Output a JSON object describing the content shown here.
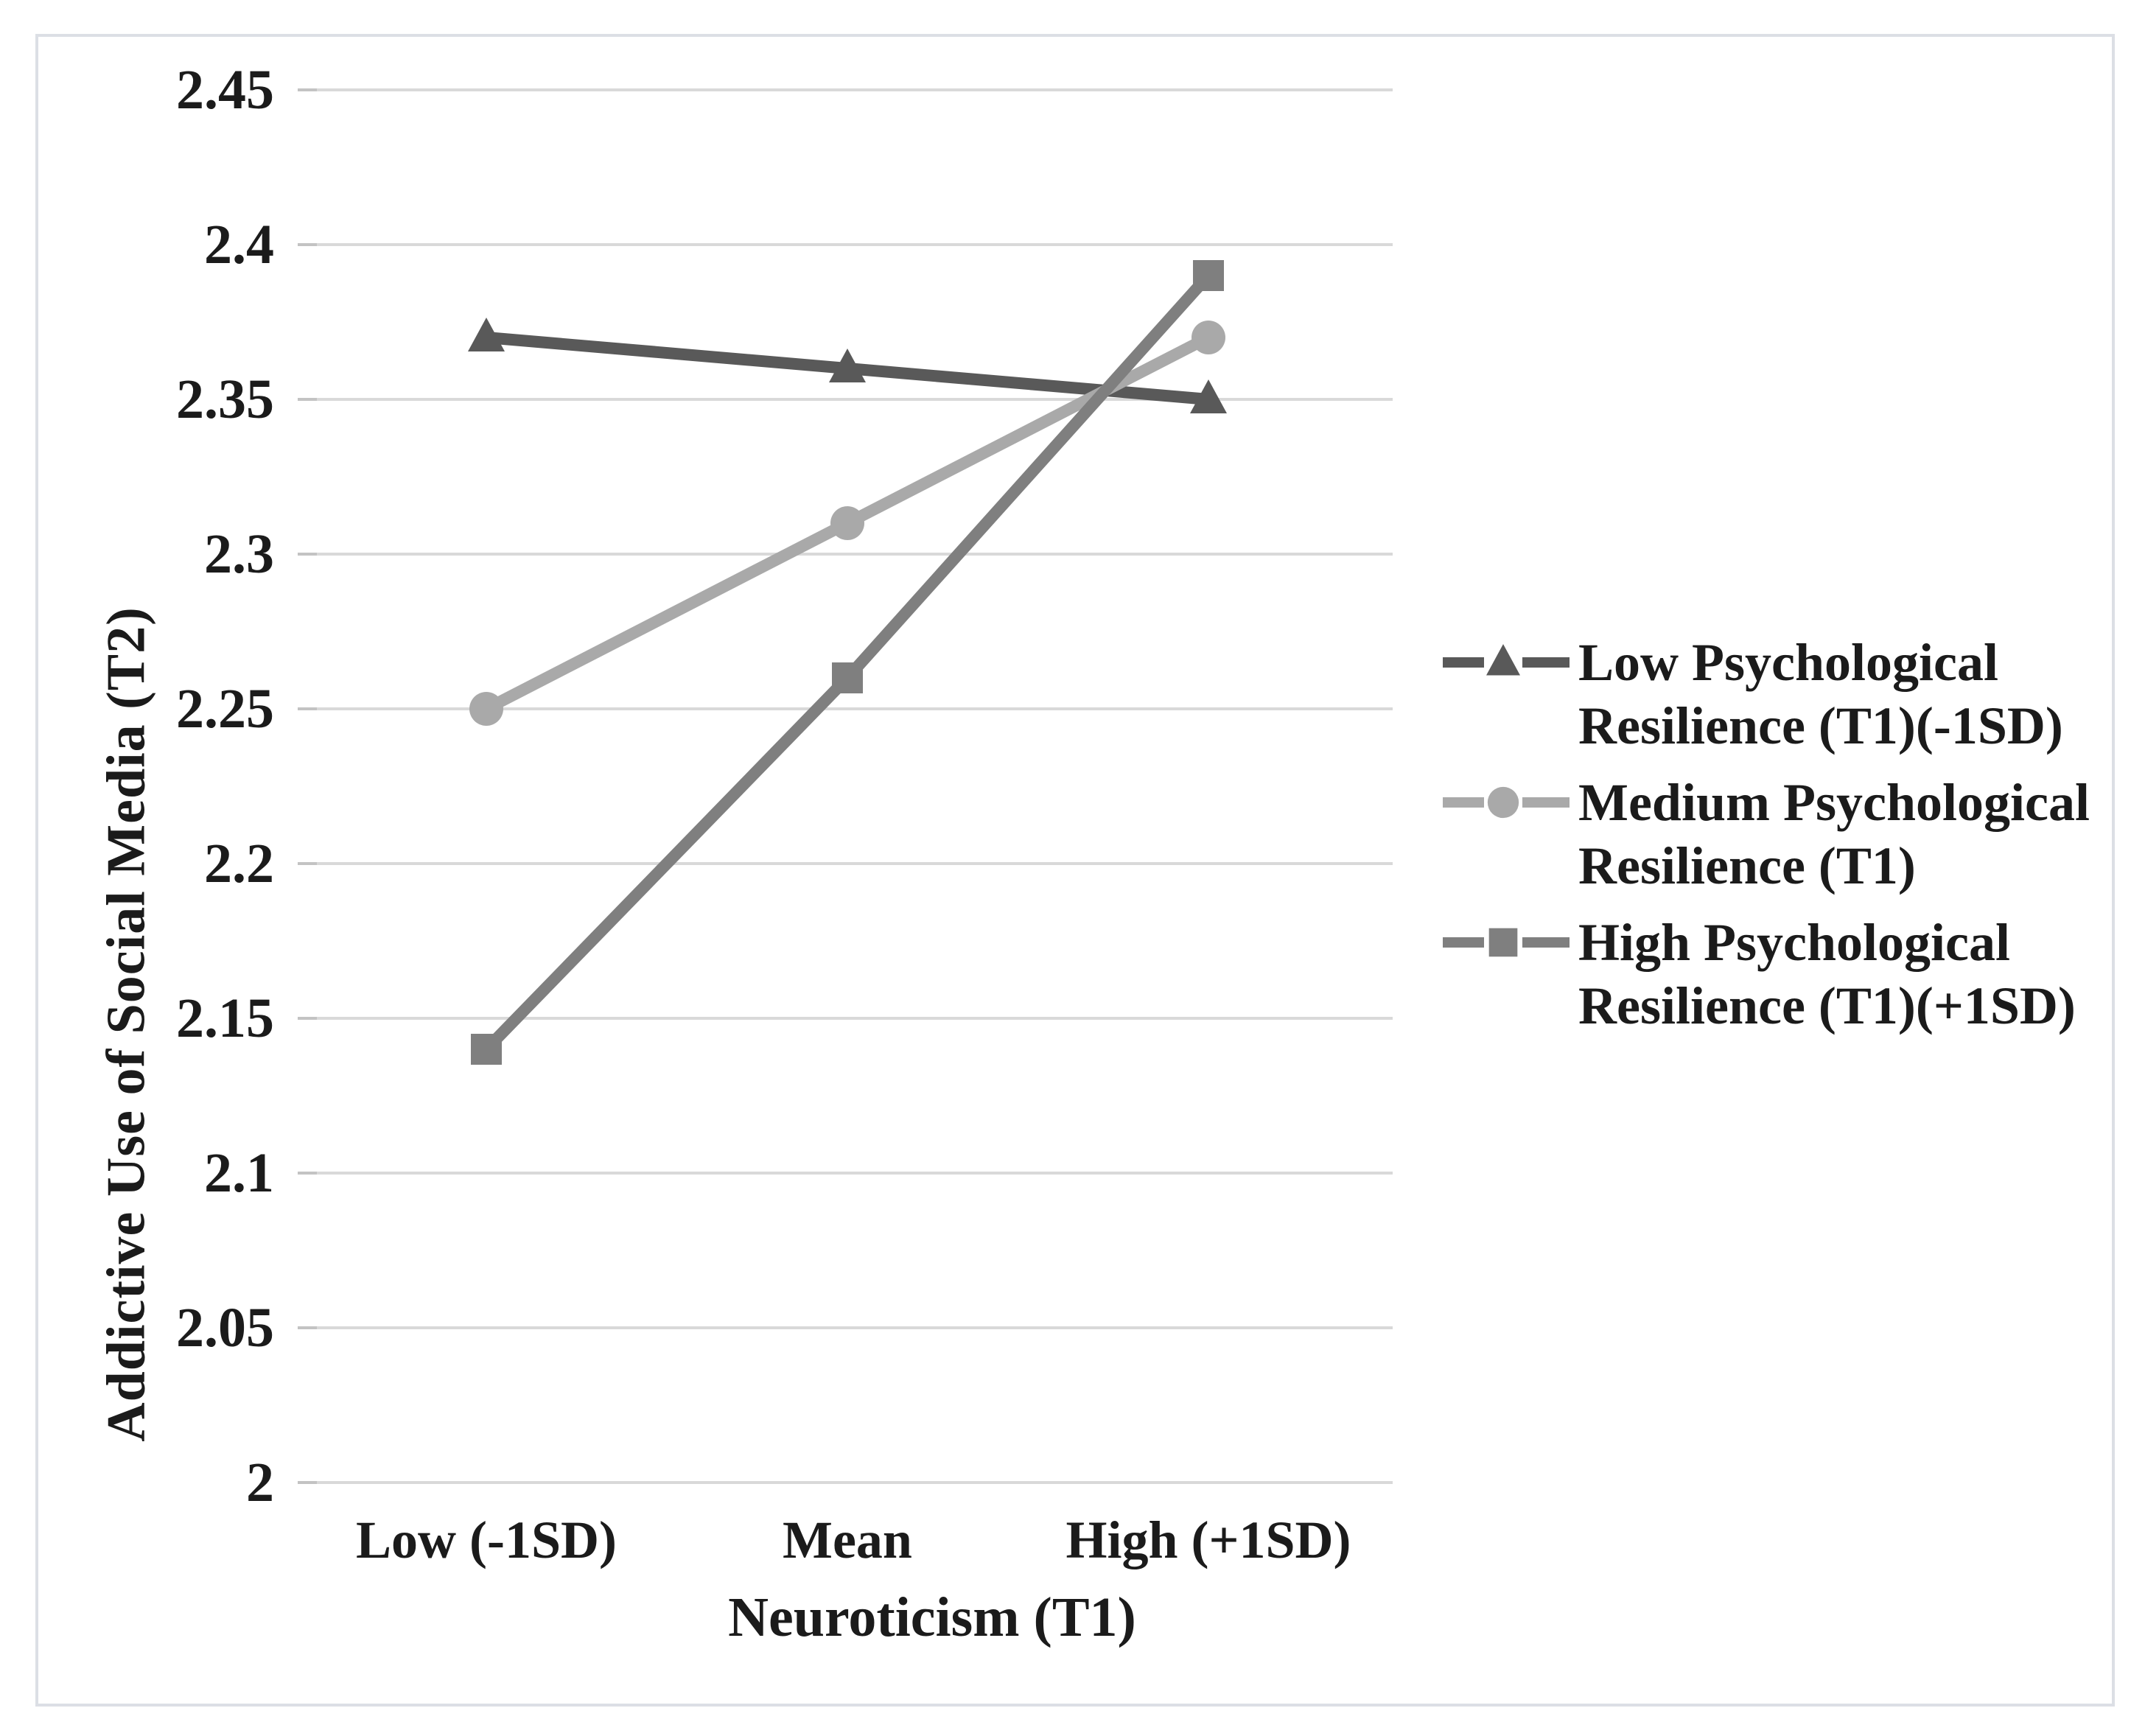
{
  "figure": {
    "background": "#ffffff",
    "border_color": "#dcdfe5",
    "text_color": "#1b1b1b",
    "gridline_color": "#d9d9d9",
    "tick_color": "#c3c3c3"
  },
  "chart_data": {
    "type": "line",
    "title": "",
    "xlabel": "Neuroticism (T1)",
    "ylabel": "Addictive Use of Social Media (T2)",
    "categories": [
      "Low (-1SD)",
      "Mean",
      "High (+1SD)"
    ],
    "series": [
      {
        "name": "Low Psychological Resilience (T1)(-1SD)",
        "legend_lines": [
          "Low Psychological",
          "Resilience (T1)(-1SD)"
        ],
        "values": [
          2.37,
          2.36,
          2.35
        ],
        "color": "#595959",
        "marker": "triangle"
      },
      {
        "name": "Medium Psychological Resilience (T1)",
        "legend_lines": [
          "Medium Psychological",
          "Resilience (T1)"
        ],
        "values": [
          2.25,
          2.31,
          2.37
        ],
        "color": "#a9a9a9",
        "marker": "circle"
      },
      {
        "name": "High Psychological Resilience (T1)(+1SD)",
        "legend_lines": [
          "High Psychological",
          "Resilience (T1)(+1SD)"
        ],
        "values": [
          2.14,
          2.26,
          2.39
        ],
        "color": "#7f7f7f",
        "marker": "square"
      }
    ],
    "ylim": [
      2.0,
      2.45
    ],
    "ytick_step": 0.05,
    "ytick_labels": [
      "2.45",
      "2.4",
      "2.35",
      "2.3",
      "2.25",
      "2.2",
      "2.15",
      "2.1",
      "2.05",
      "2"
    ],
    "grid": "horizontal",
    "legend_position": "right"
  }
}
